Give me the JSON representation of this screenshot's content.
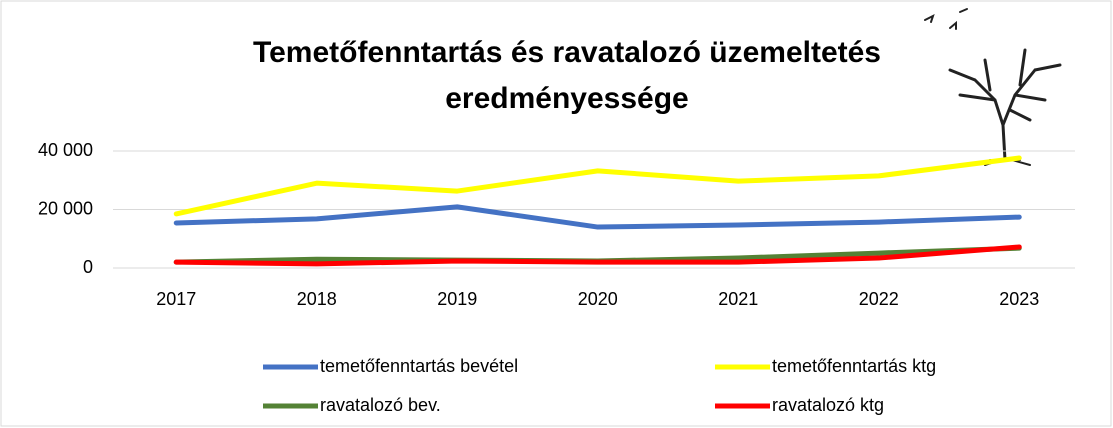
{
  "chart_data": {
    "type": "line",
    "title": "Temetőfenntartás és ravatalozó üzemeltetés eredményessége",
    "categories": [
      "2017",
      "2018",
      "2019",
      "2020",
      "2021",
      "2022",
      "2023"
    ],
    "series": [
      {
        "name": "temetőfenntartás bevétel",
        "color": "#4472c4",
        "values": [
          15400,
          16800,
          20900,
          14000,
          14700,
          15700,
          17400
        ]
      },
      {
        "name": "temetőfenntartás ktg",
        "color": "#ffff00",
        "values": [
          18500,
          29000,
          26300,
          33200,
          29700,
          31500,
          37600
        ]
      },
      {
        "name": "ravatalozó bev.",
        "color": "#548235",
        "values": [
          2000,
          3000,
          2700,
          2400,
          3400,
          5100,
          6800
        ]
      },
      {
        "name": "ravatalozó ktg",
        "color": "#ff0000",
        "values": [
          2000,
          1400,
          2400,
          2000,
          2000,
          3400,
          7200
        ]
      }
    ],
    "ylim": [
      0,
      40000
    ],
    "yticks": [
      0,
      {
        "value": 20000,
        "label": "20 000"
      },
      {
        "value": 40000,
        "label": "40 000"
      }
    ],
    "grid": true,
    "legend": "bottom"
  }
}
